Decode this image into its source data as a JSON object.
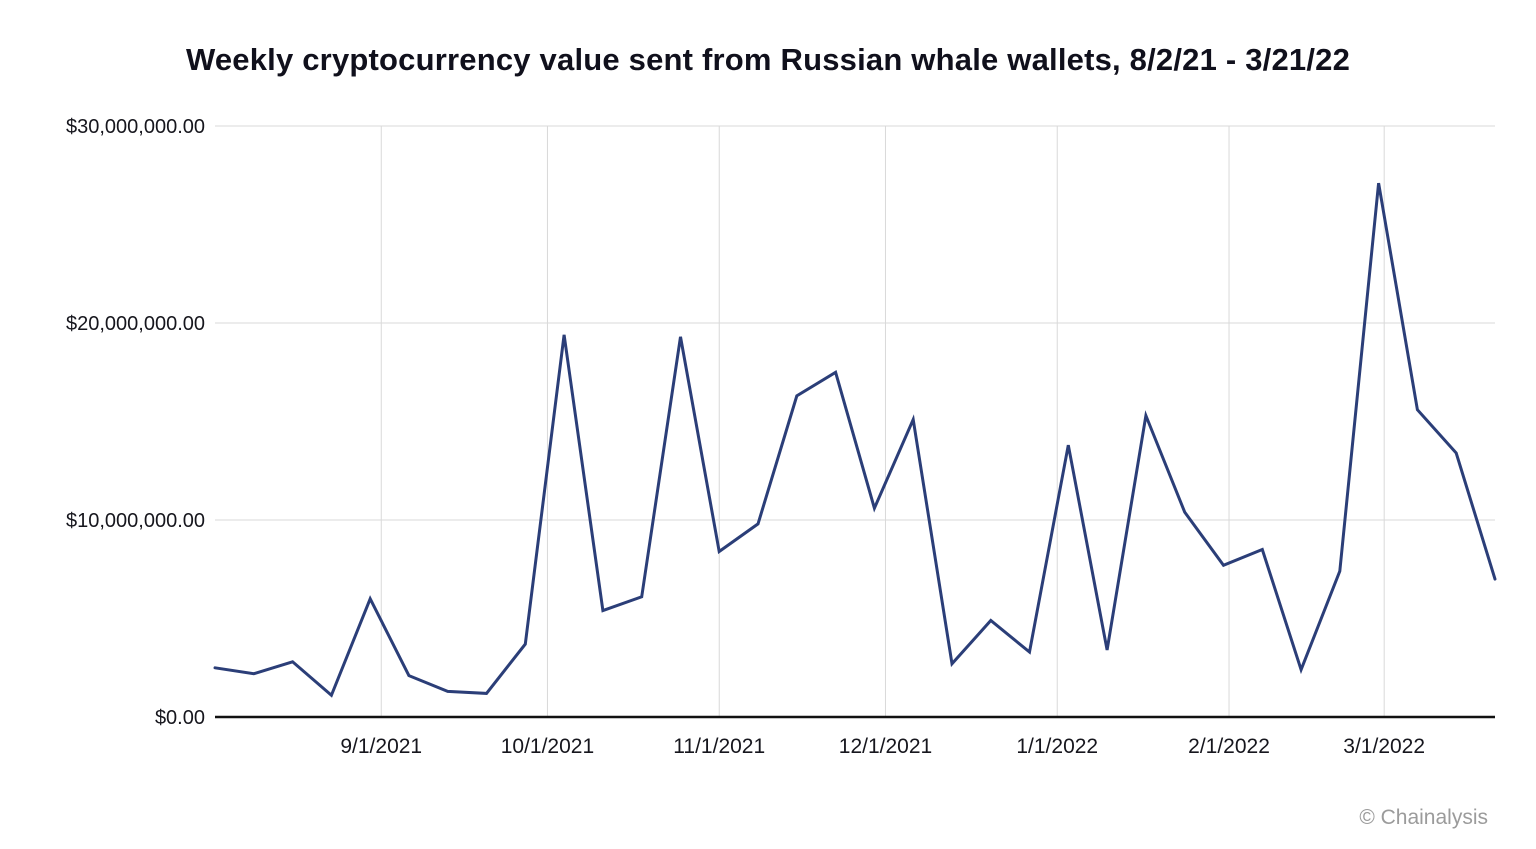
{
  "page": {
    "attribution": "© Chainalysis"
  },
  "chart_data": {
    "type": "line",
    "title": "Weekly cryptocurrency value sent from Russian whale wallets, 8/2/21 - 3/21/22",
    "series_name": "Weekly cryptocurrency value sent (USD)",
    "x": [
      "8/2/2021",
      "8/9/2021",
      "8/16/2021",
      "8/23/2021",
      "8/30/2021",
      "9/6/2021",
      "9/13/2021",
      "9/20/2021",
      "9/27/2021",
      "10/4/2021",
      "10/11/2021",
      "10/18/2021",
      "10/25/2021",
      "11/1/2021",
      "11/8/2021",
      "11/15/2021",
      "11/22/2021",
      "11/29/2021",
      "12/6/2021",
      "12/13/2021",
      "12/20/2021",
      "12/27/2021",
      "1/3/2022",
      "1/10/2022",
      "1/17/2022",
      "1/24/2022",
      "1/31/2022",
      "2/7/2022",
      "2/14/2022",
      "2/21/2022",
      "2/28/2022",
      "3/7/2022",
      "3/14/2022",
      "3/21/2022"
    ],
    "values": [
      2500000,
      2200000,
      2800000,
      1100000,
      6000000,
      2100000,
      1300000,
      1200000,
      3700000,
      19400000,
      5400000,
      6100000,
      19300000,
      8400000,
      9800000,
      16300000,
      17500000,
      10600000,
      15100000,
      2700000,
      4900000,
      3300000,
      13800000,
      3400000,
      15300000,
      10400000,
      7700000,
      8500000,
      2400000,
      7400000,
      27100000,
      15600000,
      13400000,
      7000000
    ],
    "ylim": [
      0,
      30000000
    ],
    "y_ticks": [
      {
        "value": 0,
        "label": "$0.00"
      },
      {
        "value": 10000000,
        "label": "$10,000,000.00"
      },
      {
        "value": 20000000,
        "label": "$20,000,000.00"
      },
      {
        "value": 30000000,
        "label": "$30,000,000.00"
      }
    ],
    "x_ticks": [
      {
        "label": "9/1/2021",
        "week_offset": 4.286
      },
      {
        "label": "10/1/2021",
        "week_offset": 8.571
      },
      {
        "label": "11/1/2021",
        "week_offset": 13.0
      },
      {
        "label": "12/1/2021",
        "week_offset": 17.286
      },
      {
        "label": "1/1/2022",
        "week_offset": 21.714
      },
      {
        "label": "2/1/2022",
        "week_offset": 26.143
      },
      {
        "label": "3/1/2022",
        "week_offset": 30.143
      }
    ],
    "grid": true,
    "legend": "none",
    "line_color": "#2b3e78",
    "grid_color": "#d9d9d9",
    "axis_color": "#111111",
    "tick_text_color": "#16161d"
  }
}
